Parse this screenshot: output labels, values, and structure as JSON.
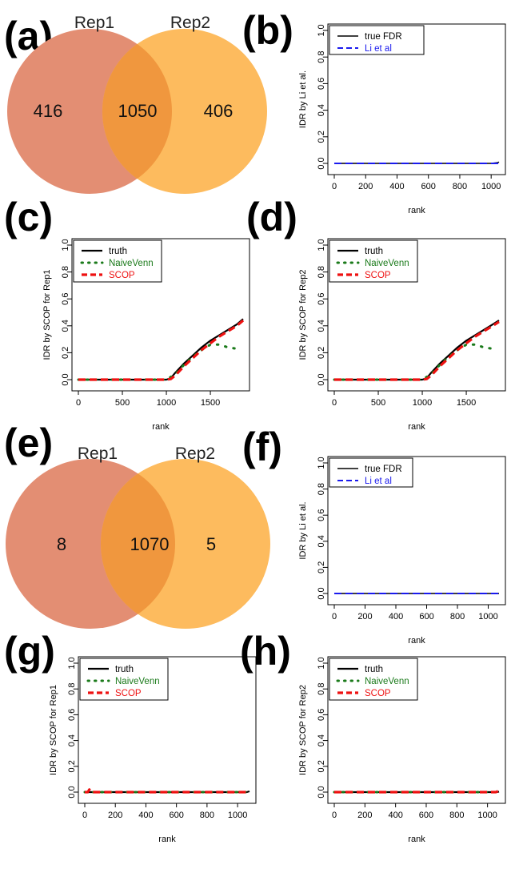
{
  "colors": {
    "rep1_circle": "#e38e73",
    "rep2_circle": "#fdbb5e",
    "overlap": "#f0973e",
    "truth": "#000000",
    "naive": "#1a7a1a",
    "scop": "#ee1111",
    "li": "#1a1aee"
  },
  "panel_labels": {
    "a": "(a)",
    "b": "(b)",
    "c": "(c)",
    "d": "(d)",
    "e": "(e)",
    "f": "(f)",
    "g": "(g)",
    "h": "(h)"
  },
  "chart_data": [
    {
      "panel": "a",
      "type": "venn",
      "set_labels": [
        "Rep1",
        "Rep2"
      ],
      "counts": {
        "rep1_only": "416",
        "both": "1050",
        "rep2_only": "406"
      }
    },
    {
      "panel": "b",
      "type": "line",
      "xlabel": "rank",
      "ylabel": "IDR by Li et al.",
      "xlim": [
        0,
        1050
      ],
      "ylim": [
        0,
        1
      ],
      "xticks": [
        "0",
        "200",
        "400",
        "600",
        "800",
        "1000"
      ],
      "yticks": [
        "0.0",
        "0.2",
        "0.4",
        "0.6",
        "0.8",
        "1.0"
      ],
      "legend": [
        {
          "name": "true FDR",
          "style": "solid",
          "color": "#000000"
        },
        {
          "name": "Li et al",
          "style": "dashed",
          "color": "#1a1aee"
        }
      ],
      "series": [
        {
          "name": "true FDR",
          "x": [
            0,
            1000,
            1040,
            1050
          ],
          "y": [
            0,
            0,
            0.005,
            0.01
          ]
        },
        {
          "name": "Li et al",
          "x": [
            0,
            1050
          ],
          "y": [
            0,
            0
          ]
        }
      ]
    },
    {
      "panel": "c",
      "type": "line",
      "xlabel": "rank",
      "ylabel": "IDR by SCOP for Rep1",
      "xlim": [
        0,
        1872
      ],
      "ylim": [
        0,
        1
      ],
      "xticks": [
        "0",
        "500",
        "1000",
        "1500"
      ],
      "yticks": [
        "0.0",
        "0.2",
        "0.4",
        "0.6",
        "0.8",
        "1.0"
      ],
      "legend": [
        {
          "name": "truth",
          "style": "solid",
          "color": "#000000"
        },
        {
          "name": "NaiveVenn",
          "style": "dotted",
          "color": "#1a7a1a"
        },
        {
          "name": "SCOP",
          "style": "dashed",
          "color": "#ee1111"
        }
      ],
      "series": [
        {
          "name": "truth",
          "x": [
            0,
            1000,
            1050,
            1100,
            1200,
            1300,
            1400,
            1500,
            1600,
            1700,
            1800,
            1872
          ],
          "y": [
            0,
            0,
            0.01,
            0.05,
            0.12,
            0.18,
            0.24,
            0.29,
            0.33,
            0.37,
            0.41,
            0.45
          ]
        },
        {
          "name": "NaiveVenn",
          "x": [
            0,
            1000,
            1100,
            1200,
            1300,
            1400,
            1500,
            1600,
            1700,
            1800,
            1850
          ],
          "y": [
            0,
            0,
            0.04,
            0.11,
            0.17,
            0.22,
            0.26,
            0.26,
            0.24,
            0.23,
            0.22
          ]
        },
        {
          "name": "SCOP",
          "x": [
            0,
            1000,
            1050,
            1100,
            1200,
            1300,
            1400,
            1500,
            1600,
            1700,
            1800,
            1872
          ],
          "y": [
            0,
            0,
            0.005,
            0.03,
            0.1,
            0.16,
            0.22,
            0.27,
            0.32,
            0.36,
            0.4,
            0.44
          ]
        }
      ]
    },
    {
      "panel": "d",
      "type": "line",
      "xlabel": "rank",
      "ylabel": "IDR by SCOP for Rep2",
      "xlim": [
        0,
        1872
      ],
      "ylim": [
        0,
        1
      ],
      "xticks": [
        "0",
        "500",
        "1000",
        "1500"
      ],
      "yticks": [
        "0.0",
        "0.2",
        "0.4",
        "0.6",
        "0.8",
        "1.0"
      ],
      "legend": [
        {
          "name": "truth",
          "style": "solid",
          "color": "#000000"
        },
        {
          "name": "NaiveVenn",
          "style": "dotted",
          "color": "#1a7a1a"
        },
        {
          "name": "SCOP",
          "style": "dashed",
          "color": "#ee1111"
        }
      ],
      "series": [
        {
          "name": "truth",
          "x": [
            0,
            1000,
            1050,
            1100,
            1200,
            1300,
            1400,
            1500,
            1600,
            1700,
            1800,
            1872
          ],
          "y": [
            0,
            0,
            0.01,
            0.05,
            0.12,
            0.18,
            0.24,
            0.29,
            0.33,
            0.37,
            0.41,
            0.44
          ]
        },
        {
          "name": "NaiveVenn",
          "x": [
            0,
            1000,
            1100,
            1200,
            1300,
            1400,
            1500,
            1600,
            1700,
            1800,
            1850
          ],
          "y": [
            0,
            0,
            0.04,
            0.11,
            0.17,
            0.22,
            0.26,
            0.26,
            0.24,
            0.23,
            0.22
          ]
        },
        {
          "name": "SCOP",
          "x": [
            0,
            1000,
            1050,
            1100,
            1200,
            1300,
            1400,
            1500,
            1600,
            1700,
            1800,
            1872
          ],
          "y": [
            0,
            0,
            0.005,
            0.03,
            0.1,
            0.16,
            0.22,
            0.27,
            0.32,
            0.36,
            0.4,
            0.43
          ]
        }
      ]
    },
    {
      "panel": "e",
      "type": "venn",
      "set_labels": [
        "Rep1",
        "Rep2"
      ],
      "counts": {
        "rep1_only": "8",
        "both": "1070",
        "rep2_only": "5"
      }
    },
    {
      "panel": "f",
      "type": "line",
      "xlabel": "rank",
      "ylabel": "IDR by Li et al.",
      "xlim": [
        0,
        1070
      ],
      "ylim": [
        0,
        1
      ],
      "xticks": [
        "0",
        "200",
        "400",
        "600",
        "800",
        "1000"
      ],
      "yticks": [
        "0.0",
        "0.2",
        "0.4",
        "0.6",
        "0.8",
        "1.0"
      ],
      "legend": [
        {
          "name": "true FDR",
          "style": "solid",
          "color": "#000000"
        },
        {
          "name": "Li et al",
          "style": "dashed",
          "color": "#1a1aee"
        }
      ],
      "series": [
        {
          "name": "true FDR",
          "x": [
            0,
            1070
          ],
          "y": [
            0,
            0
          ]
        },
        {
          "name": "Li et al",
          "x": [
            0,
            1070
          ],
          "y": [
            0,
            0
          ]
        }
      ]
    },
    {
      "panel": "g",
      "type": "line",
      "xlabel": "rank",
      "ylabel": "IDR by SCOP for Rep1",
      "xlim": [
        0,
        1078
      ],
      "ylim": [
        0,
        1
      ],
      "xticks": [
        "0",
        "200",
        "400",
        "600",
        "800",
        "1000"
      ],
      "yticks": [
        "0.0",
        "0.2",
        "0.4",
        "0.6",
        "0.8",
        "1.0"
      ],
      "legend": [
        {
          "name": "truth",
          "style": "solid",
          "color": "#000000"
        },
        {
          "name": "NaiveVenn",
          "style": "dotted",
          "color": "#1a7a1a"
        },
        {
          "name": "SCOP",
          "style": "dashed",
          "color": "#ee1111"
        }
      ],
      "series": [
        {
          "name": "truth",
          "x": [
            0,
            1060,
            1078
          ],
          "y": [
            0,
            0,
            0.006
          ]
        },
        {
          "name": "NaiveVenn",
          "x": [
            0,
            1078
          ],
          "y": [
            0,
            0
          ]
        },
        {
          "name": "SCOP",
          "x": [
            0,
            20,
            30,
            40,
            1078
          ],
          "y": [
            0,
            0,
            0.02,
            0,
            0
          ]
        }
      ]
    },
    {
      "panel": "h",
      "type": "line",
      "xlabel": "rank",
      "ylabel": "IDR by SCOP for Rep2",
      "xlim": [
        0,
        1075
      ],
      "ylim": [
        0,
        1
      ],
      "xticks": [
        "0",
        "200",
        "400",
        "600",
        "800",
        "1000"
      ],
      "yticks": [
        "0.0",
        "0.2",
        "0.4",
        "0.6",
        "0.8",
        "1.0"
      ],
      "legend": [
        {
          "name": "truth",
          "style": "solid",
          "color": "#000000"
        },
        {
          "name": "NaiveVenn",
          "style": "dotted",
          "color": "#1a7a1a"
        },
        {
          "name": "SCOP",
          "style": "dashed",
          "color": "#ee1111"
        }
      ],
      "series": [
        {
          "name": "truth",
          "x": [
            0,
            1060,
            1075
          ],
          "y": [
            0,
            0,
            0.004
          ]
        },
        {
          "name": "NaiveVenn",
          "x": [
            0,
            1075
          ],
          "y": [
            0,
            0
          ]
        },
        {
          "name": "SCOP",
          "x": [
            0,
            1055,
            1075
          ],
          "y": [
            0,
            0,
            0.012
          ]
        }
      ]
    }
  ]
}
